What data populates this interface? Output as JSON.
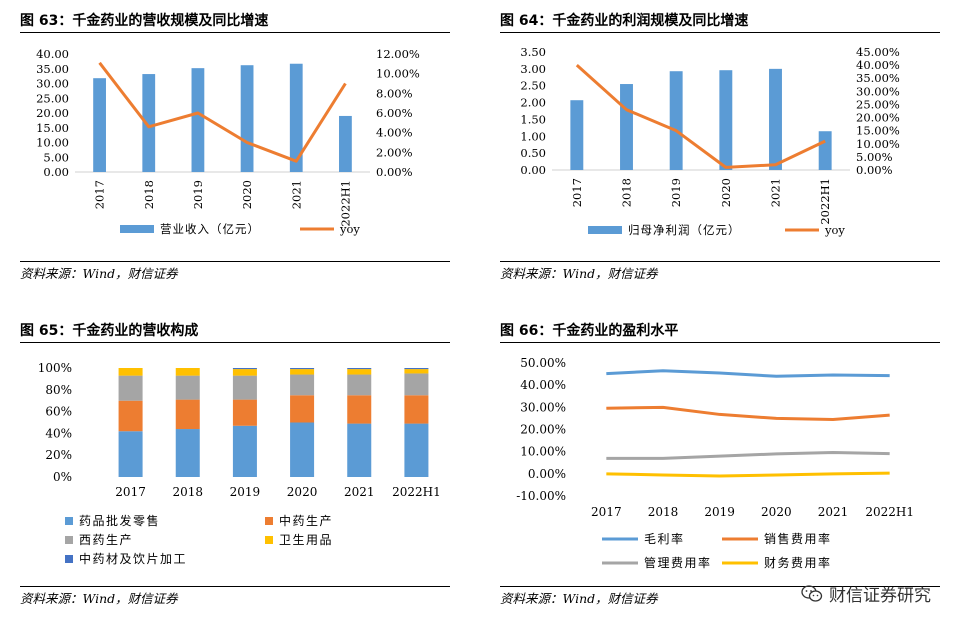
{
  "panels": [
    {
      "title": "图 63：千金药业的营收规模及同比增速",
      "source": "资料来源：Wind，财信证券"
    },
    {
      "title": "图 64：千金药业的利润规模及同比增速",
      "source": "资料来源：Wind，财信证券"
    },
    {
      "title": "图 65：千金药业的营收构成",
      "source": "资料来源：Wind，财信证券"
    },
    {
      "title": "图 66：千金药业的盈利水平",
      "source": "资料来源：Wind，财信证券"
    }
  ],
  "watermark": "财信证券研究",
  "chart_data": [
    {
      "type": "bar",
      "categories": [
        "2017",
        "2018",
        "2019",
        "2020",
        "2021",
        "2022H1"
      ],
      "series": [
        {
          "name": "营业收入（亿元）",
          "kind": "bar",
          "axis": "left",
          "color": "#5B9BD5",
          "values": [
            31.8,
            33.2,
            35.2,
            36.2,
            36.7,
            19.0
          ]
        },
        {
          "name": "yoy",
          "kind": "line",
          "axis": "right",
          "color": "#ED7D31",
          "values": [
            0.111,
            0.046,
            0.06,
            0.03,
            0.011,
            0.09
          ]
        }
      ],
      "y_left": {
        "min": 0,
        "max": 40,
        "step": 5,
        "ticks": [
          "0.00",
          "5.00",
          "10.00",
          "15.00",
          "20.00",
          "25.00",
          "30.00",
          "35.00",
          "40.00"
        ]
      },
      "y_right": {
        "min": 0,
        "max": 0.12,
        "step": 0.02,
        "ticks": [
          "0.00%",
          "2.00%",
          "4.00%",
          "6.00%",
          "8.00%",
          "10.00%",
          "12.00%"
        ]
      },
      "legend": "bottom"
    },
    {
      "type": "bar",
      "categories": [
        "2017",
        "2018",
        "2019",
        "2020",
        "2021",
        "2022H1"
      ],
      "series": [
        {
          "name": "归母净利润（亿元）",
          "kind": "bar",
          "axis": "left",
          "color": "#5B9BD5",
          "values": [
            2.07,
            2.55,
            2.93,
            2.96,
            3.0,
            1.15
          ]
        },
        {
          "name": "yoy",
          "kind": "line",
          "axis": "right",
          "color": "#ED7D31",
          "values": [
            0.4,
            0.23,
            0.15,
            0.01,
            0.02,
            0.11
          ]
        }
      ],
      "y_left": {
        "min": 0,
        "max": 3.5,
        "step": 0.5,
        "ticks": [
          "0.00",
          "0.50",
          "1.00",
          "1.50",
          "2.00",
          "2.50",
          "3.00",
          "3.50"
        ]
      },
      "y_right": {
        "min": 0,
        "max": 0.45,
        "step": 0.05,
        "ticks": [
          "0.00%",
          "5.00%",
          "10.00%",
          "15.00%",
          "20.00%",
          "25.00%",
          "30.00%",
          "35.00%",
          "40.00%",
          "45.00%"
        ]
      },
      "legend": "bottom"
    },
    {
      "type": "bar",
      "stacked": true,
      "categories": [
        "2017",
        "2018",
        "2019",
        "2020",
        "2021",
        "2022H1"
      ],
      "series": [
        {
          "name": "药品批发零售",
          "color": "#5B9BD5",
          "values": [
            0.42,
            0.44,
            0.47,
            0.5,
            0.49,
            0.49
          ]
        },
        {
          "name": "中药生产",
          "color": "#ED7D31",
          "values": [
            0.28,
            0.27,
            0.24,
            0.25,
            0.26,
            0.26
          ]
        },
        {
          "name": "西药生产",
          "color": "#A5A5A5",
          "values": [
            0.23,
            0.22,
            0.22,
            0.19,
            0.19,
            0.2
          ]
        },
        {
          "name": "卫生用品",
          "color": "#FFC000",
          "values": [
            0.07,
            0.07,
            0.06,
            0.05,
            0.05,
            0.04
          ]
        },
        {
          "name": "中药材及饮片加工",
          "color": "#4472C4",
          "values": [
            0.0,
            0.0,
            0.01,
            0.01,
            0.01,
            0.01
          ]
        }
      ],
      "y": {
        "min": 0,
        "max": 1,
        "step": 0.2,
        "ticks": [
          "0%",
          "20%",
          "40%",
          "60%",
          "80%",
          "100%"
        ]
      },
      "legend": "bottom"
    },
    {
      "type": "line",
      "categories": [
        "2017",
        "2018",
        "2019",
        "2020",
        "2021",
        "2022H1"
      ],
      "series": [
        {
          "name": "毛利率",
          "color": "#5B9BD5",
          "values": [
            0.452,
            0.465,
            0.455,
            0.44,
            0.446,
            0.443
          ]
        },
        {
          "name": "销售费用率",
          "color": "#ED7D31",
          "values": [
            0.296,
            0.3,
            0.268,
            0.25,
            0.245,
            0.265
          ]
        },
        {
          "name": "管理费用率",
          "color": "#A5A5A5",
          "values": [
            0.07,
            0.07,
            0.08,
            0.09,
            0.096,
            0.091
          ]
        },
        {
          "name": "财务费用率",
          "color": "#FFC000",
          "values": [
            0.0,
            -0.005,
            -0.01,
            -0.005,
            0.0,
            0.003
          ]
        }
      ],
      "y": {
        "min": -0.1,
        "max": 0.5,
        "step": 0.1,
        "ticks": [
          "-10.00%",
          "0.00%",
          "10.00%",
          "20.00%",
          "30.00%",
          "40.00%",
          "50.00%"
        ]
      },
      "legend": "bottom"
    }
  ]
}
